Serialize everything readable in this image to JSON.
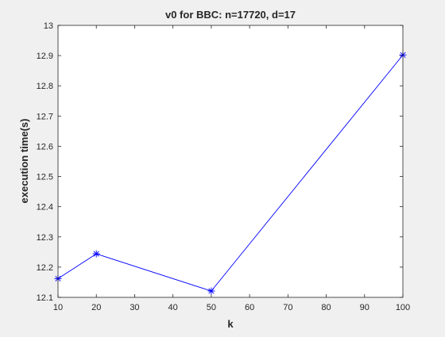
{
  "chart_data": {
    "type": "line",
    "title": "v0 for BBC: n=17720, d=17",
    "xlabel": "k",
    "ylabel": "execution time(s)",
    "xlim": [
      10,
      100
    ],
    "ylim": [
      12.1,
      13
    ],
    "xticks": [
      10,
      20,
      30,
      40,
      50,
      60,
      70,
      80,
      90,
      100
    ],
    "yticks": [
      12.1,
      12.2,
      12.3,
      12.4,
      12.5,
      12.6,
      12.7,
      12.8,
      12.9,
      13
    ],
    "grid": false,
    "legend": "none",
    "series": [
      {
        "color": "#0000ff",
        "marker": "asterisk",
        "x": [
          10,
          20,
          50,
          100
        ],
        "y": [
          12.162,
          12.244,
          12.121,
          12.902
        ]
      }
    ]
  }
}
